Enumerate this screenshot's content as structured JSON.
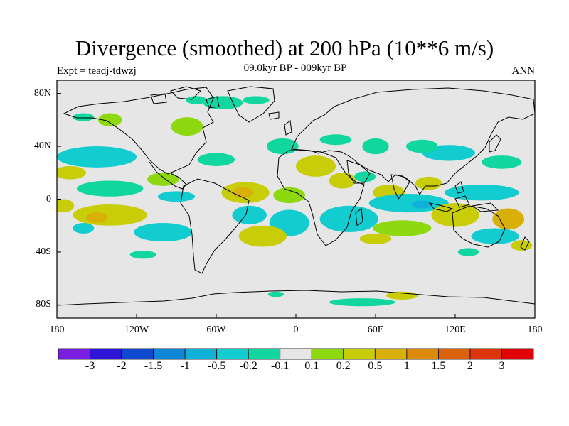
{
  "title": "Divergence (smoothed) at 200 hPa (10**6 m/s)",
  "subtitle": "09.0kyr BP - 009kyr BP",
  "experiment": "Expt = teadj-tdwzj",
  "season": "ANN",
  "map": {
    "background_color": "#e6e6e6",
    "lat_range": [
      -90,
      90
    ],
    "lon_range": [
      -180,
      180
    ],
    "lat_labels": [
      {
        "lat": 80,
        "label": "80N"
      },
      {
        "lat": 40,
        "label": "40N"
      },
      {
        "lat": 0,
        "label": "0"
      },
      {
        "lat": -40,
        "label": "40S"
      },
      {
        "lat": -80,
        "label": "80S"
      }
    ],
    "lon_labels": [
      {
        "lon": -180,
        "label": "180"
      },
      {
        "lon": -120,
        "label": "120W"
      },
      {
        "lon": -60,
        "label": "60W"
      },
      {
        "lon": 0,
        "label": "0"
      },
      {
        "lon": 60,
        "label": "60E"
      },
      {
        "lon": 120,
        "label": "120E"
      },
      {
        "lon": 180,
        "label": "180"
      }
    ]
  },
  "colorbar": {
    "colors": [
      "#7a1fe0",
      "#2f16d6",
      "#1048cf",
      "#0f86d6",
      "#11b0d9",
      "#12ccd0",
      "#12d6a0",
      "#e6e6e6",
      "#8ed80f",
      "#c8cd08",
      "#d9b00a",
      "#db8a0c",
      "#dc620d",
      "#de3409",
      "#e00008"
    ],
    "labels": [
      "-3",
      "-2",
      "-1.5",
      "-1",
      "-0.5",
      "-0.2",
      "-0.1",
      "0.1",
      "0.2",
      "0.5",
      "1",
      "1.5",
      "2",
      "3"
    ]
  },
  "anomaly_field": [
    {
      "lon": -140,
      "lat": 60,
      "rx": 9,
      "ry": 5,
      "level": 8
    },
    {
      "lon": -82,
      "lat": 55,
      "rx": 12,
      "ry": 7,
      "level": 8
    },
    {
      "lon": -55,
      "lat": 73,
      "rx": 15,
      "ry": 5,
      "level": 6
    },
    {
      "lon": -75,
      "lat": 75,
      "rx": 8,
      "ry": 3,
      "level": 6
    },
    {
      "lon": -30,
      "lat": 75,
      "rx": 10,
      "ry": 3,
      "level": 6
    },
    {
      "lon": -10,
      "lat": 40,
      "rx": 12,
      "ry": 6,
      "level": 6
    },
    {
      "lon": -60,
      "lat": 30,
      "rx": 14,
      "ry": 5,
      "level": 6
    },
    {
      "lon": -100,
      "lat": 15,
      "rx": 12,
      "ry": 5,
      "level": 8
    },
    {
      "lon": -150,
      "lat": 32,
      "rx": 30,
      "ry": 8,
      "level": 5
    },
    {
      "lon": -140,
      "lat": 8,
      "rx": 25,
      "ry": 6,
      "level": 6
    },
    {
      "lon": -170,
      "lat": 20,
      "rx": 12,
      "ry": 5,
      "level": 9
    },
    {
      "lon": -90,
      "lat": 2,
      "rx": 14,
      "ry": 4,
      "level": 5
    },
    {
      "lon": -140,
      "lat": -12,
      "rx": 28,
      "ry": 8,
      "level": 9
    },
    {
      "lon": -150,
      "lat": -14,
      "rx": 8,
      "ry": 4,
      "level": 10
    },
    {
      "lon": -38,
      "lat": 5,
      "rx": 18,
      "ry": 8,
      "level": 9
    },
    {
      "lon": -40,
      "lat": 5,
      "rx": 8,
      "ry": 4,
      "level": 10
    },
    {
      "lon": -5,
      "lat": 3,
      "rx": 12,
      "ry": 6,
      "level": 8
    },
    {
      "lon": -35,
      "lat": -12,
      "rx": 13,
      "ry": 7,
      "level": 5
    },
    {
      "lon": -5,
      "lat": -18,
      "rx": 15,
      "ry": 10,
      "level": 5
    },
    {
      "lon": -100,
      "lat": -25,
      "rx": 22,
      "ry": 7,
      "level": 5
    },
    {
      "lon": -115,
      "lat": -42,
      "rx": 10,
      "ry": 3,
      "level": 6
    },
    {
      "lon": -160,
      "lat": -22,
      "rx": 8,
      "ry": 4,
      "level": 5
    },
    {
      "lon": -25,
      "lat": -28,
      "rx": 18,
      "ry": 8,
      "level": 9
    },
    {
      "lon": 15,
      "lat": 25,
      "rx": 15,
      "ry": 8,
      "level": 9
    },
    {
      "lon": 35,
      "lat": 14,
      "rx": 10,
      "ry": 6,
      "level": 9
    },
    {
      "lon": 52,
      "lat": 17,
      "rx": 8,
      "ry": 4,
      "level": 6
    },
    {
      "lon": 70,
      "lat": 5,
      "rx": 12,
      "ry": 6,
      "level": 9
    },
    {
      "lon": 100,
      "lat": 12,
      "rx": 10,
      "ry": 5,
      "level": 9
    },
    {
      "lon": 140,
      "lat": 5,
      "rx": 28,
      "ry": 6,
      "level": 5
    },
    {
      "lon": 115,
      "lat": 35,
      "rx": 20,
      "ry": 6,
      "level": 5
    },
    {
      "lon": 95,
      "lat": 40,
      "rx": 12,
      "ry": 5,
      "level": 6
    },
    {
      "lon": 60,
      "lat": 40,
      "rx": 10,
      "ry": 6,
      "level": 6
    },
    {
      "lon": 155,
      "lat": 28,
      "rx": 15,
      "ry": 5,
      "level": 6
    },
    {
      "lon": 40,
      "lat": -15,
      "rx": 22,
      "ry": 10,
      "level": 5
    },
    {
      "lon": 85,
      "lat": -3,
      "rx": 30,
      "ry": 7,
      "level": 5
    },
    {
      "lon": 95,
      "lat": -4,
      "rx": 8,
      "ry": 3,
      "level": 4
    },
    {
      "lon": 80,
      "lat": -22,
      "rx": 22,
      "ry": 6,
      "level": 8
    },
    {
      "lon": 120,
      "lat": -12,
      "rx": 18,
      "ry": 9,
      "level": 9
    },
    {
      "lon": 160,
      "lat": -15,
      "rx": 12,
      "ry": 8,
      "level": 10
    },
    {
      "lon": 150,
      "lat": -28,
      "rx": 18,
      "ry": 6,
      "level": 5
    },
    {
      "lon": 60,
      "lat": -30,
      "rx": 12,
      "ry": 4,
      "level": 9
    },
    {
      "lon": 170,
      "lat": -35,
      "rx": 8,
      "ry": 4,
      "level": 9
    },
    {
      "lon": 130,
      "lat": -40,
      "rx": 8,
      "ry": 3,
      "level": 6
    },
    {
      "lon": 50,
      "lat": -78,
      "rx": 25,
      "ry": 3,
      "level": 6
    },
    {
      "lon": 80,
      "lat": -73,
      "rx": 12,
      "ry": 3,
      "level": 9
    },
    {
      "lon": -15,
      "lat": -72,
      "rx": 6,
      "ry": 2,
      "level": 6
    },
    {
      "lon": -160,
      "lat": 62,
      "rx": 8,
      "ry": 3,
      "level": 6
    },
    {
      "lon": 30,
      "lat": 45,
      "rx": 12,
      "ry": 4,
      "level": 6
    },
    {
      "lon": -175,
      "lat": -5,
      "rx": 8,
      "ry": 5,
      "level": 9
    }
  ]
}
